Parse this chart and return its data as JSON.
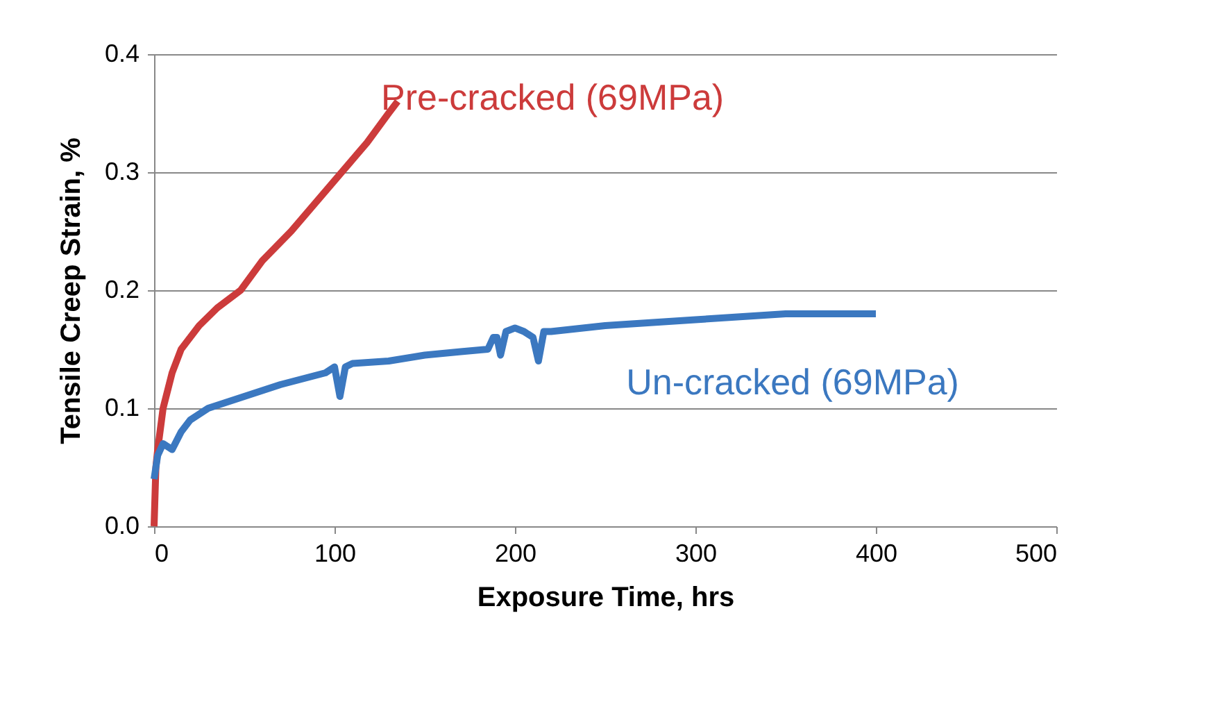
{
  "chart_data": {
    "type": "line",
    "xlabel": "Exposure Time, hrs",
    "ylabel": "Tensile Creep Strain, %",
    "xlim": [
      0,
      500
    ],
    "xticks": [
      0,
      100,
      200,
      300,
      400,
      500
    ],
    "ylim": [
      0,
      0.4
    ],
    "yticks": [
      {
        "value": 0,
        "label": "0.0"
      },
      0.1,
      0.2,
      0.3,
      0.4
    ],
    "grid": "y",
    "line_style": "solid",
    "marker": "none",
    "series": [
      {
        "name": "Pre-cracked (69MPa)",
        "color": "#cc3b3b",
        "x": [
          0,
          1,
          2,
          5,
          10,
          15,
          25,
          35,
          48,
          60,
          76,
          90,
          104,
          118,
          130,
          135
        ],
        "values": [
          0.0,
          0.05,
          0.065,
          0.1,
          0.13,
          0.15,
          0.17,
          0.185,
          0.2,
          0.225,
          0.25,
          0.275,
          0.3,
          0.325,
          0.35,
          0.36
        ]
      },
      {
        "name": "Un-cracked (69MPa)",
        "color": "#3b78c0",
        "x": [
          0,
          2,
          5,
          10,
          15,
          20,
          30,
          40,
          50,
          70,
          95,
          100,
          103,
          106,
          110,
          130,
          150,
          170,
          185,
          188,
          190,
          192,
          195,
          200,
          205,
          210,
          213,
          216,
          220,
          250,
          300,
          350,
          400
        ],
        "values": [
          0.04,
          0.06,
          0.07,
          0.065,
          0.08,
          0.09,
          0.1,
          0.105,
          0.11,
          0.12,
          0.13,
          0.135,
          0.11,
          0.135,
          0.138,
          0.14,
          0.145,
          0.148,
          0.15,
          0.16,
          0.16,
          0.145,
          0.165,
          0.168,
          0.165,
          0.16,
          0.14,
          0.165,
          0.165,
          0.17,
          0.175,
          0.18,
          0.18
        ]
      }
    ]
  }
}
